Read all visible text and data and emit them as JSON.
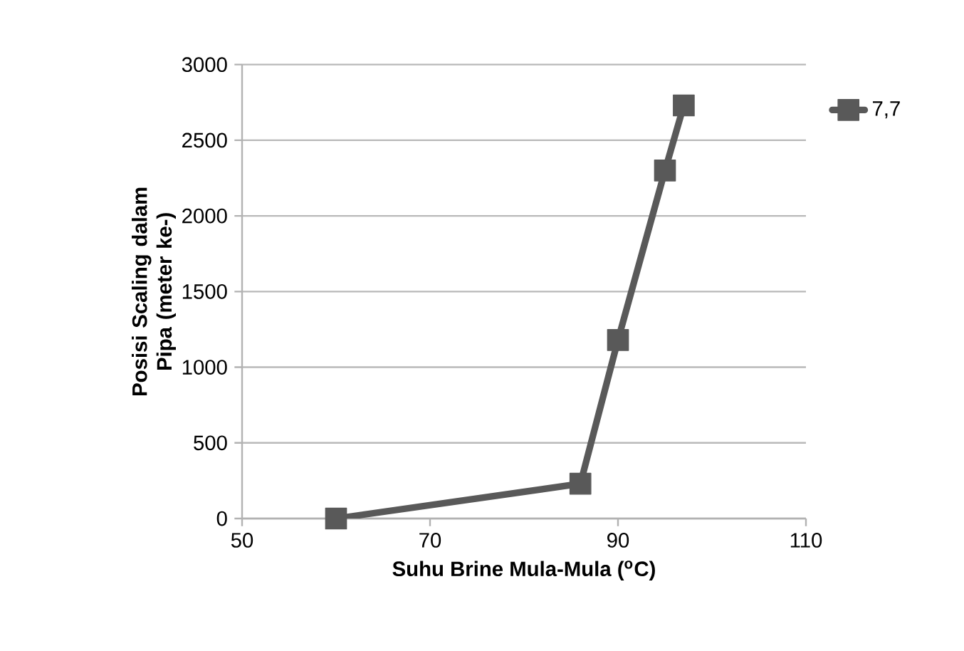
{
  "chart_data": {
    "type": "line",
    "xlabel": "Suhu Brine Mula-Mula ($^{o}$C)",
    "ylabel": "Posisi Scaling dalam Pipa (meter ke-)",
    "series": [
      {
        "name": "7,7",
        "color": "#595959",
        "x": [
          60,
          86,
          90,
          95,
          97
        ],
        "values": [
          0,
          230,
          1180,
          2300,
          2730
        ]
      }
    ],
    "xlim": [
      50,
      110
    ],
    "xticks": [
      50,
      70,
      90,
      110
    ],
    "ylim": [
      0,
      3000
    ],
    "yticks": [
      0,
      500,
      1000,
      1500,
      2000,
      2500,
      3000
    ],
    "grid": "y",
    "legend": "right",
    "marker": "square",
    "line_style": "solid"
  }
}
